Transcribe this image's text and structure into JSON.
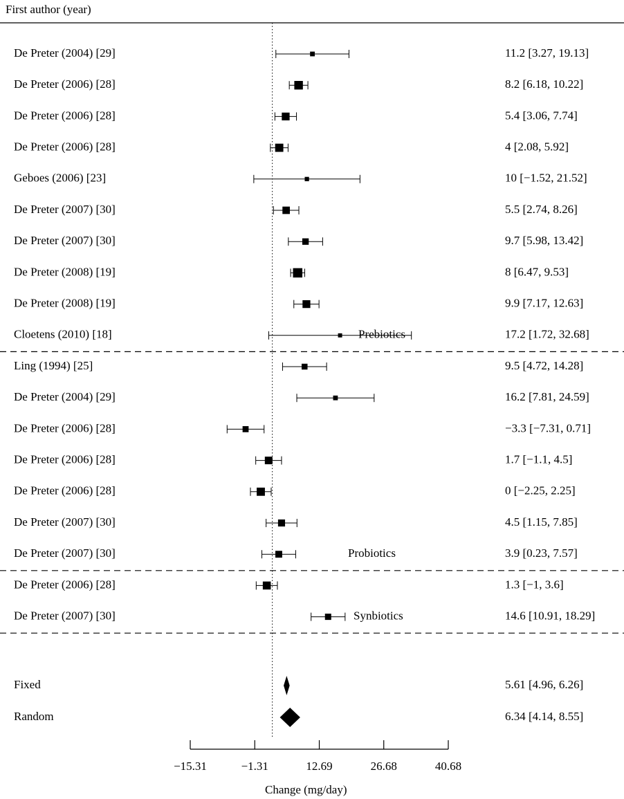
{
  "chart_data": {
    "type": "forest",
    "header": "First author (year)",
    "xlabel": "Change (mg/day)",
    "xlim": [
      -15.31,
      40.68
    ],
    "x_ticks": [
      -15.31,
      -1.31,
      12.69,
      26.68,
      40.68
    ],
    "x_tick_labels": [
      "−15.31",
      "−1.31",
      "12.69",
      "26.68",
      "40.68"
    ],
    "reference_line": 2.5,
    "groups": [
      {
        "name": "Prebiotics",
        "studies": [
          {
            "label": "De Preter (2004) [29]",
            "est": 11.2,
            "lo": 3.27,
            "hi": 19.13,
            "weight": 1,
            "text": "11.2 [3.27, 19.13]"
          },
          {
            "label": "De Preter (2006) [28]",
            "est": 8.2,
            "lo": 6.18,
            "hi": 10.22,
            "weight": 3,
            "text": "8.2 [6.18, 10.22]"
          },
          {
            "label": "De Preter (2006) [28]",
            "est": 5.4,
            "lo": 3.06,
            "hi": 7.74,
            "weight": 2.6,
            "text": "5.4 [3.06, 7.74]"
          },
          {
            "label": "De Preter (2006) [28]",
            "est": 4,
            "lo": 2.08,
            "hi": 5.92,
            "weight": 2.8,
            "text": "4 [2.08, 5.92]"
          },
          {
            "label": "Geboes (2006) [23]",
            "est": 10,
            "lo": -1.52,
            "hi": 21.52,
            "weight": 0.8,
            "text": "10 [−1.52, 21.52]"
          },
          {
            "label": "De Preter (2007) [30]",
            "est": 5.5,
            "lo": 2.74,
            "hi": 8.26,
            "weight": 2.4,
            "text": "5.5 [2.74, 8.26]"
          },
          {
            "label": "De Preter (2007) [30]",
            "est": 9.7,
            "lo": 5.98,
            "hi": 13.42,
            "weight": 1.9,
            "text": "9.7 [5.98, 13.42]"
          },
          {
            "label": "De Preter (2008) [19]",
            "est": 8,
            "lo": 6.47,
            "hi": 9.53,
            "weight": 3.4,
            "text": "8 [6.47, 9.53]"
          },
          {
            "label": "De Preter (2008) [19]",
            "est": 9.9,
            "lo": 7.17,
            "hi": 12.63,
            "weight": 2.6,
            "text": "9.9 [7.17, 12.63]"
          },
          {
            "label": "Cloetens (2010) [18]",
            "est": 17.2,
            "lo": 1.72,
            "hi": 32.68,
            "weight": 0.7,
            "text": "17.2 [1.72, 32.68]"
          }
        ]
      },
      {
        "name": "Probiotics",
        "studies": [
          {
            "label": "Ling (1994) [25]",
            "est": 9.5,
            "lo": 4.72,
            "hi": 14.28,
            "weight": 1.6,
            "text": "9.5 [4.72, 14.28]"
          },
          {
            "label": "De Preter (2004) [29]",
            "est": 16.2,
            "lo": 7.81,
            "hi": 24.59,
            "weight": 1,
            "text": "16.2 [7.81, 24.59]"
          },
          {
            "label": "De Preter (2006) [28]",
            "est": -3.3,
            "lo": -7.31,
            "hi": 0.71,
            "weight": 1.7,
            "text": "−3.3 [−7.31, 0.71]"
          },
          {
            "label": "De Preter (2006) [28]",
            "est": 1.7,
            "lo": -1.1,
            "hi": 4.5,
            "weight": 2.5,
            "text": "1.7 [−1.1, 4.5]"
          },
          {
            "label": "De Preter (2006) [28]",
            "est": 0,
            "lo": -2.25,
            "hi": 2.25,
            "weight": 2.8,
            "text": "0 [−2.25, 2.25]"
          },
          {
            "label": "De Preter (2007) [30]",
            "est": 4.5,
            "lo": 1.15,
            "hi": 7.85,
            "weight": 2.2,
            "text": "4.5 [1.15, 7.85]"
          },
          {
            "label": "De Preter (2007) [30]",
            "est": 3.9,
            "lo": 0.23,
            "hi": 7.57,
            "weight": 2.1,
            "text": "3.9 [0.23, 7.57]"
          }
        ]
      },
      {
        "name": "Synbiotics",
        "studies": [
          {
            "label": "De Preter (2006) [28]",
            "est": 1.3,
            "lo": -1,
            "hi": 3.6,
            "weight": 2.7,
            "text": "1.3 [−1, 3.6]"
          },
          {
            "label": "De Preter (2007) [30]",
            "est": 14.6,
            "lo": 10.91,
            "hi": 18.29,
            "weight": 1.8,
            "text": "14.6 [10.91, 18.29]"
          }
        ]
      }
    ],
    "summary": [
      {
        "label": "Fixed",
        "est": 5.61,
        "lo": 4.96,
        "hi": 6.26,
        "text": "5.61 [4.96, 6.26]"
      },
      {
        "label": "Random",
        "est": 6.34,
        "lo": 4.14,
        "hi": 8.55,
        "text": "6.34 [4.14, 8.55]"
      }
    ]
  }
}
